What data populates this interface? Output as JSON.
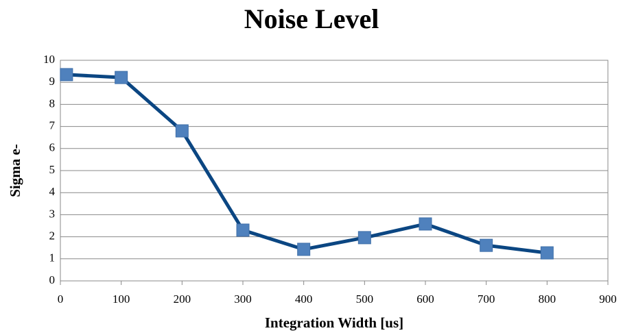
{
  "chart_data": {
    "type": "line",
    "title": "Noise Level",
    "x_label": "Integration Width [us]",
    "y_label": "Sigma e-",
    "x": [
      10,
      100,
      200,
      300,
      400,
      500,
      600,
      700,
      800
    ],
    "values": [
      9.35,
      9.22,
      6.8,
      2.3,
      1.43,
      1.96,
      2.58,
      1.61,
      1.27
    ],
    "color": "#0b4682",
    "marker_color": "#4f81bd",
    "xlim": [
      0,
      900
    ],
    "xticks": [
      0,
      100,
      200,
      300,
      400,
      500,
      600,
      700,
      800,
      900
    ],
    "ylim": [
      0,
      10
    ],
    "yticks": [
      0,
      1,
      2,
      3,
      4,
      5,
      6,
      7,
      8,
      9,
      10
    ],
    "grid": true
  }
}
